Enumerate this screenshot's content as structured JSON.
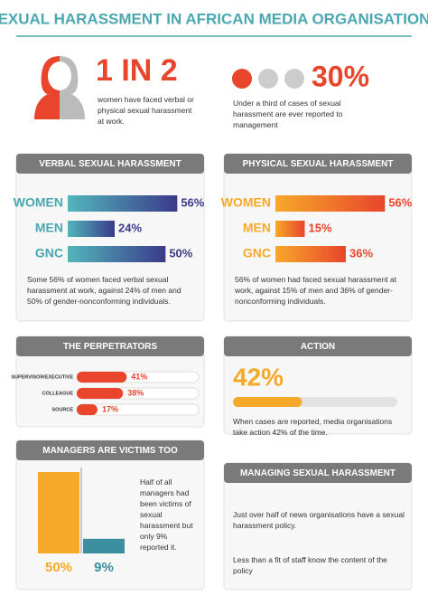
{
  "title": "SEXUAL HARASSMENT IN AFRICAN MEDIA ORGANISATIONS",
  "stats": [
    {
      "big": "1 IN 2",
      "text": "women have faced verbal or physical sexual harassment at work."
    },
    {
      "big": "30%",
      "text": "Under a third of cases of sexual harassment are ever reported to management"
    }
  ],
  "chart_data": [
    {
      "type": "bar",
      "horizontal": true,
      "title": "VERBAL SEXUAL HARASSMENT",
      "categories": [
        "WOMEN",
        "MEN",
        "GNC"
      ],
      "values": [
        56,
        24,
        50
      ],
      "value_labels": [
        "56%",
        "24%",
        "50%"
      ],
      "colors": [
        "#52b6bb",
        "#3a3a8a"
      ],
      "xlim": [
        0,
        60
      ],
      "caption": "Some 56% of women faced verbal sexual harassment at work, against 24% of men and 50% of gender-nonconforming individuals."
    },
    {
      "type": "bar",
      "horizontal": true,
      "title": "PHYSICAL SEXUAL HARASSMENT",
      "categories": [
        "WOMEN",
        "MEN",
        "GNC"
      ],
      "values": [
        56,
        15,
        36
      ],
      "value_labels": [
        "56%",
        "15%",
        "36%"
      ],
      "colors": [
        "#f6a929",
        "#e8452c"
      ],
      "xlim": [
        0,
        60
      ],
      "caption": "56% of women had faced sexual harassment at work, against 15% of men and 36% of gender-nonconforming individuals."
    },
    {
      "type": "bar",
      "horizontal": true,
      "title": "THE PERPETRATORS",
      "categories": [
        "SUPERVISOR/EXECUTIVE",
        "COLLEAGUE",
        "SOURCE"
      ],
      "values": [
        41,
        38,
        17
      ],
      "value_labels": [
        "41%",
        "38%",
        "17%"
      ],
      "colors": [
        "#e8452c",
        "#e8452c"
      ],
      "xlim": [
        0,
        100
      ]
    },
    {
      "type": "bar",
      "horizontal": true,
      "title": "ACTION",
      "values": [
        42
      ],
      "value_labels": [
        "42%"
      ],
      "colors": [
        "#f6a929",
        "#f6a929"
      ],
      "xlim": [
        0,
        100
      ],
      "caption": "When cases are reported, media organisations take action 42% of the time."
    },
    {
      "type": "bar",
      "horizontal": false,
      "title": "MANAGERS ARE VICTIMS TOO",
      "values": [
        50,
        9
      ],
      "value_labels": [
        "50%",
        "9%"
      ],
      "colors": [
        "#f6a929",
        "#3b8fa0"
      ],
      "ylim": [
        0,
        50
      ],
      "caption": "Half of all managers had been victims of sexual harassment but only 9% reported it."
    }
  ],
  "managing": {
    "title": "MANAGING SEXUAL HARASSMENT",
    "items": [
      "Just over half of news organisations have a sexual harassment policy.",
      "Less than a fit of staff know the content of the policy"
    ]
  }
}
